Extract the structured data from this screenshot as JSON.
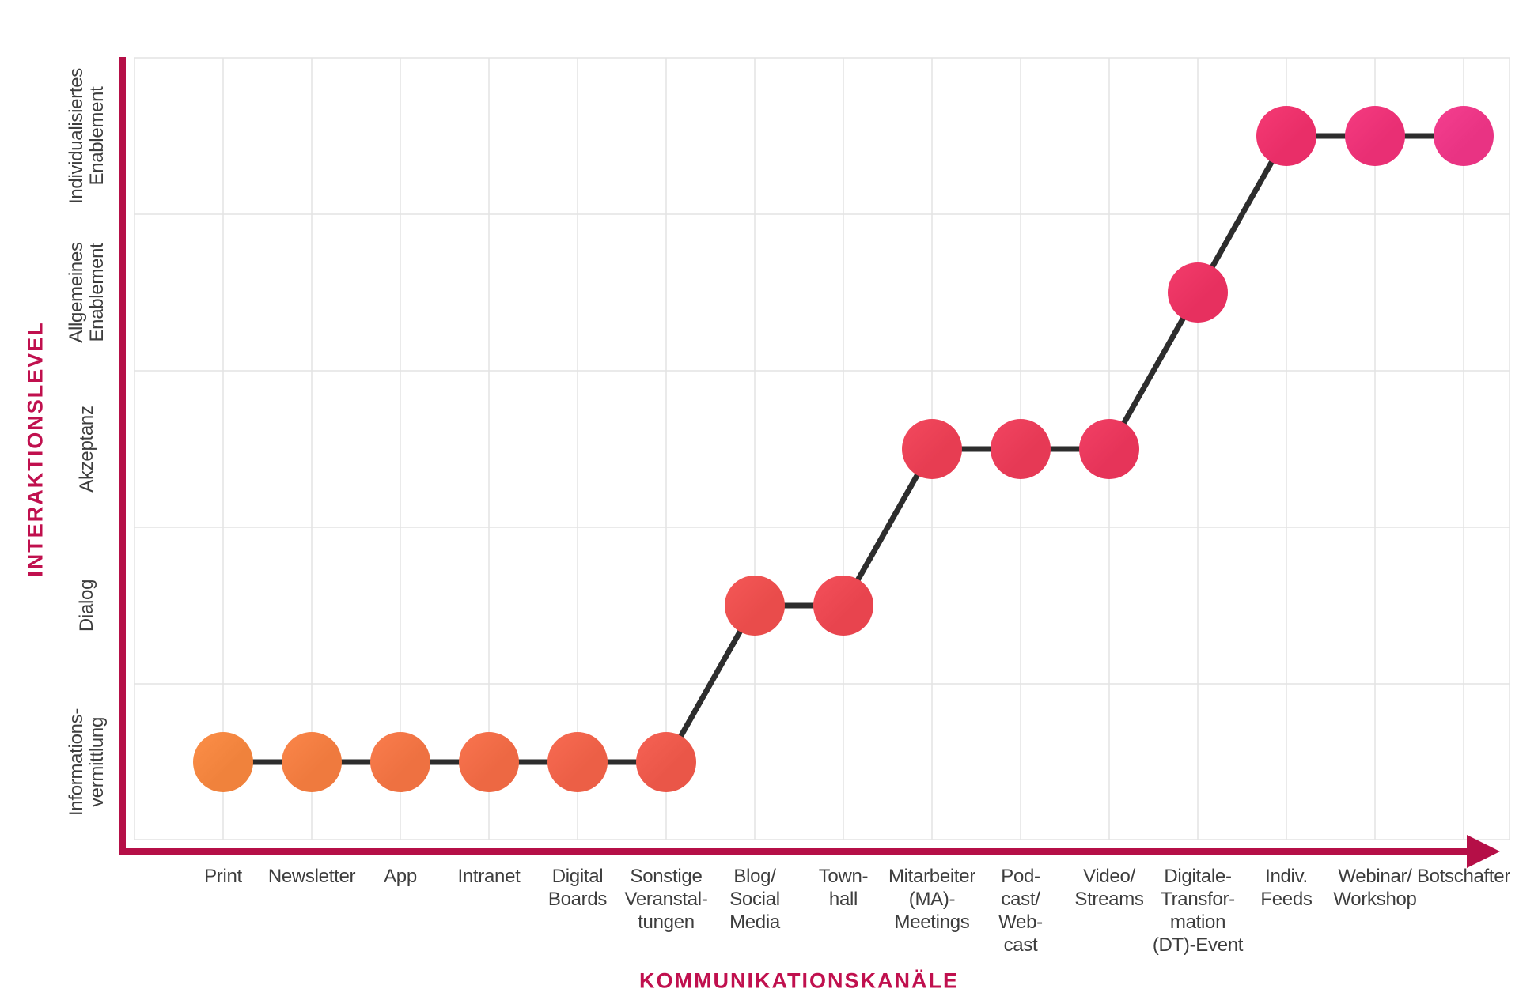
{
  "chart_data": {
    "type": "line",
    "title": "",
    "xlabel": "KOMMUNIKATIONSKANÄLE",
    "ylabel": "INTERAKTIONSLEVEL",
    "categories": [
      "Print",
      "Newsletter",
      "App",
      "Intranet",
      "Digital Boards",
      "Sonstige Veranstaltungen",
      "Blog/Social Media",
      "Townhall",
      "Mitarbeiter (MA)-Meetings",
      "Podcast/Webcast",
      "Video/Streams",
      "Digitale-Transformation (DT)-Event",
      "Indiv. Feeds",
      "Webinar/Workshop",
      "Botschafter"
    ],
    "category_label_lines": [
      [
        "Print"
      ],
      [
        "Newsletter"
      ],
      [
        "App"
      ],
      [
        "Intranet"
      ],
      [
        "Digital",
        "Boards"
      ],
      [
        "Sonstige",
        "Veranstal-",
        "tungen"
      ],
      [
        "Blog/",
        "Social",
        "Media"
      ],
      [
        "Town-",
        "hall"
      ],
      [
        "Mitarbeiter",
        "(MA)-",
        "Meetings"
      ],
      [
        "Pod-",
        "cast/",
        "Web-",
        "cast"
      ],
      [
        "Video/",
        "Streams"
      ],
      [
        "Digitale-",
        "Transfor-",
        "mation",
        "(DT)-Event"
      ],
      [
        "Indiv.",
        "Feeds"
      ],
      [
        "Webinar/",
        "Workshop"
      ],
      [
        "Botschafter"
      ]
    ],
    "values": [
      1,
      1,
      1,
      1,
      1,
      1,
      2,
      2,
      3,
      3,
      3,
      4,
      5,
      5,
      5
    ],
    "y_tick_labels": [
      "Informations-vermittlung",
      "Dialog",
      "Akzeptanz",
      "Allgemeines Enablement",
      "Individualisiertes Enablement"
    ],
    "y_tick_label_lines": [
      [
        "Informations-",
        "vermittlung"
      ],
      [
        "Dialog"
      ],
      [
        "Akzeptanz"
      ],
      [
        "Allgemeines",
        "Enablement"
      ],
      [
        "Individualisiertes",
        "Enablement"
      ]
    ],
    "ylim": [
      0.5,
      5.5
    ],
    "grid": true,
    "legend": false,
    "point_colors": [
      "#F0823C",
      "#EF7A3E",
      "#EE7141",
      "#ED6843",
      "#EC5F46",
      "#EA5648",
      "#E94C4B",
      "#E8444E",
      "#E73D52",
      "#E63955",
      "#E63459",
      "#E7305F",
      "#E92E68",
      "#E92F74",
      "#E93383"
    ],
    "connector_color": "#2D2D2D",
    "axis_color": "#B50F47",
    "title_color": "#C0104E",
    "label_color": "#3D3D3D",
    "grid_color": "#E4E4E4",
    "background_color": "#FFFFFF"
  }
}
